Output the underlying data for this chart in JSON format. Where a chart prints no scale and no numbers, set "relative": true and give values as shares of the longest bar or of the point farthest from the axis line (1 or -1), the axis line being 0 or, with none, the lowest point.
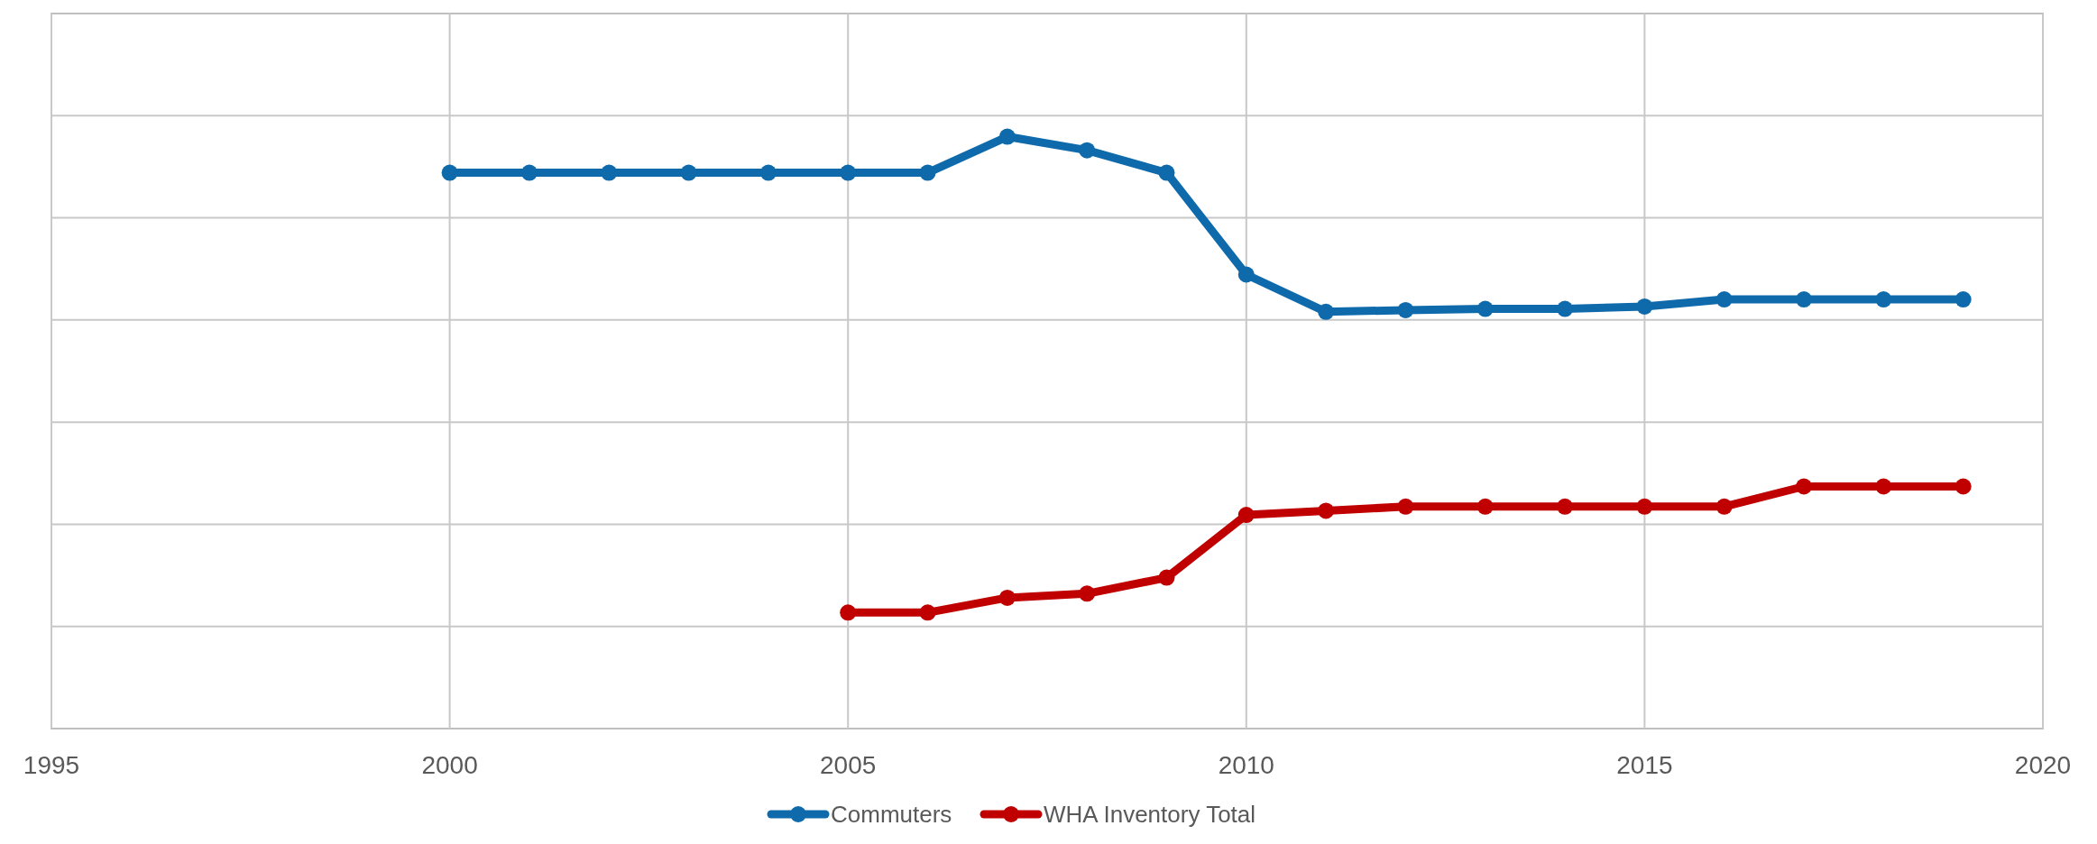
{
  "chart_data": {
    "type": "line",
    "relative": true,
    "x": [
      2000,
      2001,
      2002,
      2003,
      2004,
      2005,
      2006,
      2007,
      2008,
      2009,
      2010,
      2011,
      2012,
      2013,
      2014,
      2015,
      2016,
      2017,
      2018,
      2019
    ],
    "xlim": [
      1995,
      2020
    ],
    "xticks": [
      1995,
      2000,
      2005,
      2010,
      2015,
      2020
    ],
    "grid": true,
    "legend": "bottom",
    "marker": "circle",
    "line_style": "solid",
    "series": [
      {
        "name": "Commuters",
        "color": "#0f6aac",
        "values": [
          0.939,
          0.939,
          0.939,
          0.939,
          0.939,
          0.939,
          0.939,
          1,
          0.977,
          0.939,
          0.767,
          0.704,
          0.707,
          0.709,
          0.709,
          0.713,
          0.725,
          0.725,
          0.725,
          0.725
        ]
      },
      {
        "name": "WHA Inventory Total",
        "color": "#c00000",
        "values": [
          null,
          null,
          null,
          null,
          null,
          0.196,
          0.196,
          0.221,
          0.228,
          0.255,
          0.361,
          0.368,
          0.375,
          0.375,
          0.375,
          0.375,
          0.375,
          0.409,
          0.409,
          0.409
        ]
      }
    ]
  }
}
